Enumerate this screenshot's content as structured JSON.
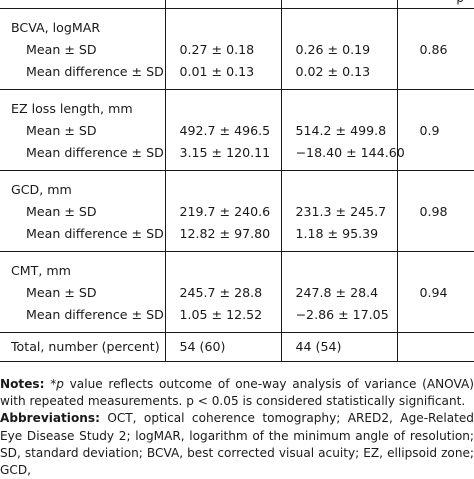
{
  "header": {
    "col4_fragment": "p"
  },
  "groups": [
    {
      "label": "BCVA, logMAR",
      "rows": [
        {
          "label": "Mean ± SD",
          "v1": "0.27 ± 0.18",
          "v2": "0.26 ± 0.19"
        },
        {
          "label": "Mean difference ± SD",
          "v1": "0.01 ± 0.13",
          "v2": "0.02 ± 0.13"
        }
      ],
      "p": "0.86"
    },
    {
      "label": "EZ loss length, mm",
      "rows": [
        {
          "label": "Mean ± SD",
          "v1": "492.7 ± 496.5",
          "v2": "514.2 ± 499.8"
        },
        {
          "label": "Mean difference ± SD",
          "v1": "3.15 ± 120.11",
          "v2": "−18.40 ± 144.60"
        }
      ],
      "p": "0.9"
    },
    {
      "label": "GCD, mm",
      "rows": [
        {
          "label": "Mean ± SD",
          "v1": "219.7 ± 240.6",
          "v2": "231.3 ± 245.7"
        },
        {
          "label": "Mean difference ± SD",
          "v1": "12.82 ± 97.80",
          "v2": "1.18 ± 95.39"
        }
      ],
      "p": "0.98"
    },
    {
      "label": "CMT, mm",
      "rows": [
        {
          "label": "Mean ± SD",
          "v1": "245.7 ± 28.8",
          "v2": "247.8 ± 28.4"
        },
        {
          "label": "Mean difference ± SD",
          "v1": "1.05 ± 12.52",
          "v2": "−2.86 ± 17.05"
        }
      ],
      "p": "0.94"
    }
  ],
  "total": {
    "label": "Total, number (percent)",
    "v1": "54 (60)",
    "v2": "44 (54)"
  },
  "notes": {
    "notes_label": "Notes:",
    "notes_star": "*",
    "notes_p": "p",
    "notes_text": " value reflects outcome of one-way analysis of variance (ANOVA) with repeated measurements. p < 0.05 is considered statistically significant.",
    "abbr_label": "Abbreviations:",
    "abbr_text": " OCT, optical coherence tomography; ARED2, Age-Related Eye Disease Study 2; logMAR, logarithm of the minimum angle of resolution; SD, standard deviation; BCVA, best corrected visual acuity; EZ, ellipsoid zone; GCD,"
  }
}
